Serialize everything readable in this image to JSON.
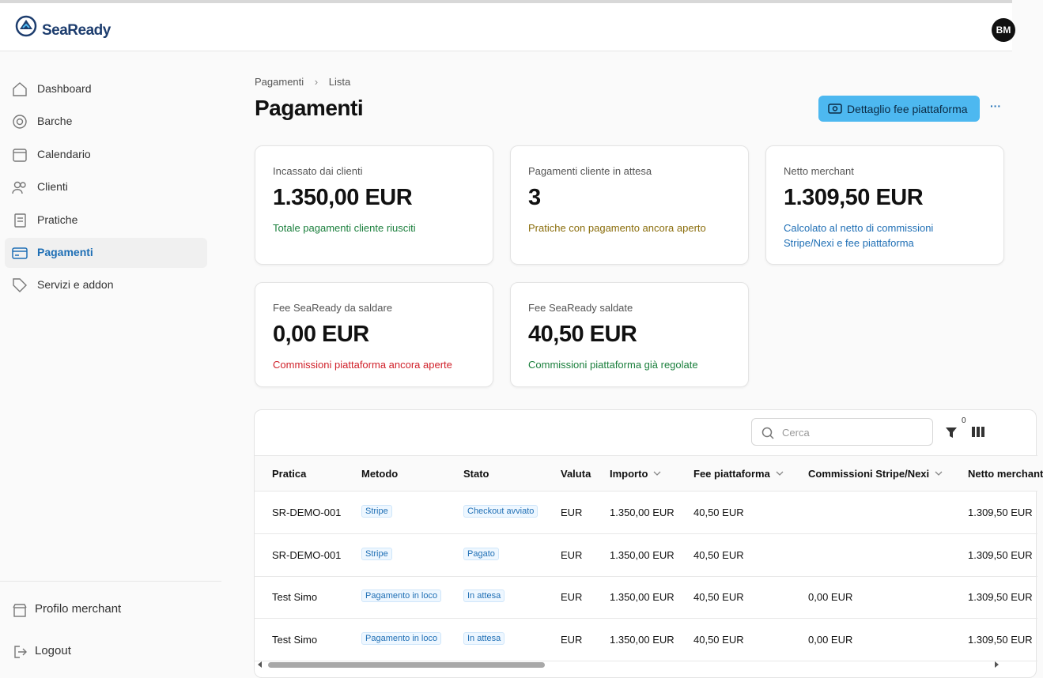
{
  "header": {
    "logo": "SeaReady",
    "avatar": "BM"
  },
  "sidebar": {
    "nav": [
      "Dashboard",
      "Barche",
      "Calendario",
      "Clienti",
      "Pratiche",
      "Pagamenti",
      "Servizi e addon"
    ],
    "footer": [
      "Profilo merchant",
      "Logout"
    ]
  },
  "breadcrumb": [
    "Pagamenti",
    "Lista"
  ],
  "page": {
    "title": "Pagamenti",
    "button": "Dettaglio fee piattaforma"
  },
  "stats": [
    {
      "label": "Incassato dai clienti",
      "value": "1.350,00 EUR",
      "note": "Totale pagamenti cliente riusciti"
    },
    {
      "label": "Pagamenti cliente in attesa",
      "value": "3",
      "note": "Pratiche con pagamento ancora aperto"
    },
    {
      "label": "Netto merchant",
      "value": "1.309,50 EUR",
      "note": "Calcolato al netto di commissioni Stripe/Nexi e fee piattaforma"
    },
    {
      "label": "Fee SeaReady da saldare",
      "value": "0,00 EUR",
      "note": "Commissioni piattaforma ancora aperte"
    },
    {
      "label": "Fee SeaReady saldate",
      "value": "40,50 EUR",
      "note": "Commissioni piattaforma già regolate"
    }
  ],
  "table": {
    "search": "Cerca",
    "filter_count": "0",
    "columns": [
      "Pratica",
      "Metodo",
      "Stato",
      "Valuta",
      "Importo",
      "Fee piattaforma",
      "Commissioni Stripe/Nexi",
      "Netto merchant"
    ],
    "rows": [
      [
        "SR-DEMO-001",
        "Stripe",
        "Checkout avviato",
        "EUR",
        "1.350,00 EUR",
        "40,50 EUR",
        null,
        "1.309,50 EUR"
      ],
      [
        "SR-DEMO-001",
        "Stripe",
        "Pagato",
        "EUR",
        "1.350,00 EUR",
        "40,50 EUR",
        null,
        "1.309,50 EUR"
      ],
      [
        "Test Simo",
        "Pagamento in loco",
        "In attesa",
        "EUR",
        "1.350,00 EUR",
        "40,50 EUR",
        "0,00 EUR",
        "1.309,50 EUR"
      ],
      [
        "Test Simo",
        "Pagamento in loco",
        "In attesa",
        "EUR",
        "1.350,00 EUR",
        "40,50 EUR",
        "0,00 EUR",
        "1.309,50 EUR"
      ]
    ]
  }
}
